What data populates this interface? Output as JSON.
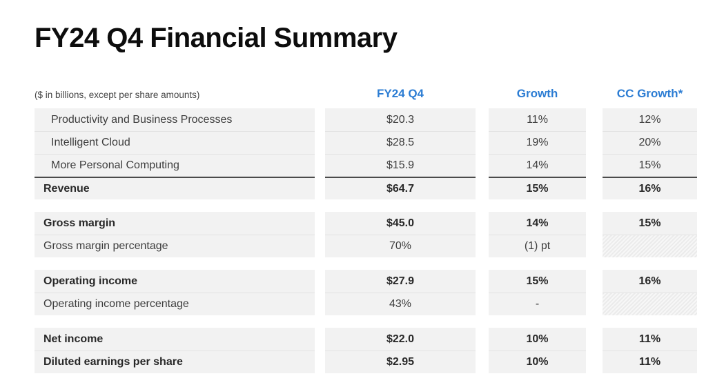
{
  "title": "FY24 Q4 Financial Summary",
  "colors": {
    "accent_blue": "#2B7CD3",
    "row_background": "#f2f2f2",
    "total_rule": "#4b4b4b"
  },
  "table": {
    "note": "($ in billions, except per share amounts)",
    "columns": [
      "FY24 Q4",
      "Growth",
      "CC Growth*"
    ],
    "rows": [
      {
        "label": "Productivity and Business Processes",
        "fy24": "$20.3",
        "growth": "11%",
        "cc": "12%"
      },
      {
        "label": "Intelligent Cloud",
        "fy24": "$28.5",
        "growth": "19%",
        "cc": "20%"
      },
      {
        "label": "More Personal Computing",
        "fy24": "$15.9",
        "growth": "14%",
        "cc": "15%"
      },
      {
        "label": "Revenue",
        "fy24": "$64.7",
        "growth": "15%",
        "cc": "16%"
      },
      {
        "label": "Gross margin",
        "fy24": "$45.0",
        "growth": "14%",
        "cc": "15%"
      },
      {
        "label": "Gross margin percentage",
        "fy24": "70%",
        "growth": "(1) pt",
        "cc": ""
      },
      {
        "label": "Operating income",
        "fy24": "$27.9",
        "growth": "15%",
        "cc": "16%"
      },
      {
        "label": "Operating income percentage",
        "fy24": "43%",
        "growth": "-",
        "cc": ""
      },
      {
        "label": "Net income",
        "fy24": "$22.0",
        "growth": "10%",
        "cc": "11%"
      },
      {
        "label": "Diluted earnings per share",
        "fy24": "$2.95",
        "growth": "10%",
        "cc": "11%"
      }
    ]
  }
}
